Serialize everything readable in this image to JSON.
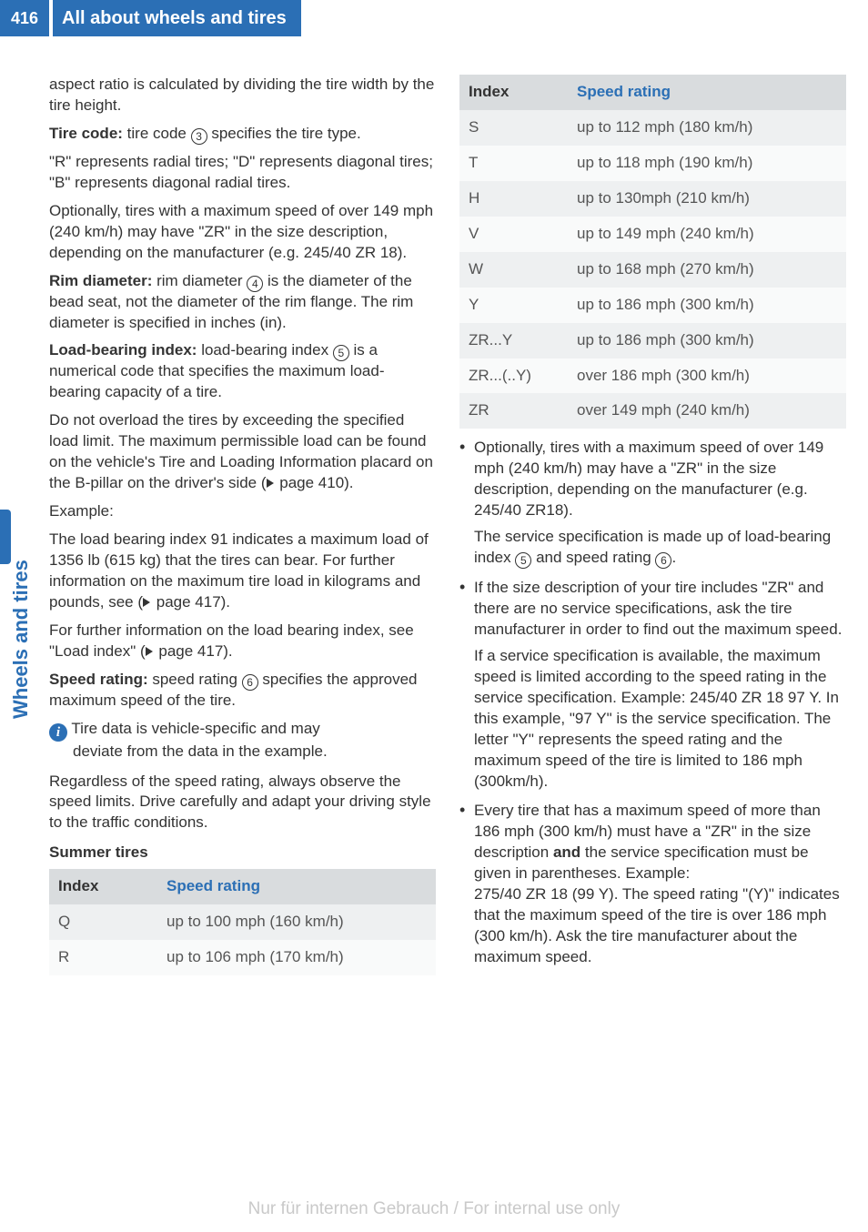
{
  "page_number": "416",
  "chapter_title": "All about wheels and tires",
  "side_tab": "Wheels and tires",
  "colors": {
    "brand": "#2b6fb5",
    "text": "#333333",
    "muted": "#555555",
    "th_bg": "#d9dcde",
    "row_even": "#eef0f1",
    "row_odd": "#f9fafa",
    "watermark": "#c9c9c9"
  },
  "left": {
    "p1": "aspect ratio is calculated by dividing the tire width by the tire height.",
    "p2a": "Tire code:",
    "p2b": " tire code ",
    "p2n": "3",
    "p2c": " specifies the tire type.",
    "p3": "\"R\" represents radial tires; \"D\" represents diagonal tires; \"B\" represents diagonal radial tires.",
    "p4": "Optionally, tires with a maximum speed of over 149 mph (240 km/h) may have \"ZR\" in the size description, depending on the manufacturer (e.g. 245/40 ZR 18).",
    "p5a": "Rim diameter:",
    "p5b": " rim diameter ",
    "p5n": "4",
    "p5c": " is the diameter of the bead seat, not the diameter of the rim flange. The rim diameter is specified in inches (in).",
    "p6a": "Load-bearing index: ",
    "p6b": " load-bearing index ",
    "p6n": "5",
    "p6c": " is a numerical code that specifies the maximum load-bearing capacity of a tire.",
    "p7a": "Do not overload the tires by exceeding the specified load limit. The maximum permissible load can be found on the vehicle's Tire and Loading Information placard on the B-pillar on the driver's side (",
    "p7page": " page 410).",
    "p8": "Example:",
    "p9a": "The load bearing index 91 indicates a maximum load of 1356 lb (615 kg) that the tires can bear. For further information on the maximum tire load in kilograms and pounds, see (",
    "p9page": " page 417).",
    "p10a": "For further information on the load bearing index, see \"Load index\" (",
    "p10page": " page 417).",
    "p11a": "Speed rating:",
    "p11b": " speed rating ",
    "p11n": "6",
    "p11c": " specifies the approved maximum speed of the tire.",
    "info_l1": " Tire data is vehicle-specific and may",
    "info_l2": "deviate from the data in the example.",
    "p12": "Regardless of the speed rating, always observe the speed limits. Drive carefully and adapt your driving style to the traffic conditions.",
    "summer_h": "Summer tires",
    "table1": {
      "h1": "Index",
      "h2": "Speed rating",
      "rows": [
        {
          "i": "Q",
          "s": "up to 100 mph (160 km/h)"
        },
        {
          "i": "R",
          "s": "up to 106 mph (170 km/h)"
        }
      ]
    }
  },
  "right": {
    "table2": {
      "h1": "Index",
      "h2": "Speed rating",
      "rows": [
        {
          "i": "S",
          "s": "up to 112 mph (180 km/h)"
        },
        {
          "i": "T",
          "s": "up to 118 mph (190 km/h)"
        },
        {
          "i": "H",
          "s": "up to 130mph (210 km/h)"
        },
        {
          "i": "V",
          "s": "up to 149 mph (240 km/h)"
        },
        {
          "i": "W",
          "s": "up to 168 mph (270 km/h)"
        },
        {
          "i": "Y",
          "s": "up to 186 mph (300 km/h)"
        },
        {
          "i": "ZR...Y",
          "s": "up to 186 mph (300 km/h)"
        },
        {
          "i": "ZR...(..Y)",
          "s": "over 186 mph (300 km/h)"
        },
        {
          "i": "ZR",
          "s": "over 149 mph (240 km/h)"
        }
      ]
    },
    "b1a": "Optionally, tires with a maximum speed of over 149 mph (240 km/h) may have a \"ZR\" in the size description, depending on the manufacturer (e.g. 245/40 ZR18).",
    "b1b_a": "The service specification is made up of load-bearing index ",
    "b1b_n1": "5",
    "b1b_b": " and speed rating ",
    "b1b_n2": "6",
    "b1b_c": ".",
    "b2a": "If the size description of your tire includes \"ZR\" and there are no service specifications, ask the tire manufacturer in order to find out the maximum speed.",
    "b2b": "If a service specification is available, the maximum speed is limited according to the speed rating in the service specification. Example: 245/40 ZR 18 97 Y. In this example, \"97 Y\" is the service specification. The letter \"Y\" represents the speed rating and the maximum speed of the tire is limited to 186 mph (300km/h).",
    "b3a": "Every tire that has a maximum speed of more than 186 mph (300 km/h) must have a \"ZR\" in the size description ",
    "b3and": "and",
    "b3b": " the service specification must be given in parentheses. Example:",
    "b3c": "275/40 ZR 18 (99 Y). The speed rating \"(Y)\" indicates that the maximum speed of the tire is over 186 mph (300 km/h). Ask the tire manufacturer about the maximum speed."
  },
  "watermark": "Nur für internen Gebrauch / For internal use only"
}
